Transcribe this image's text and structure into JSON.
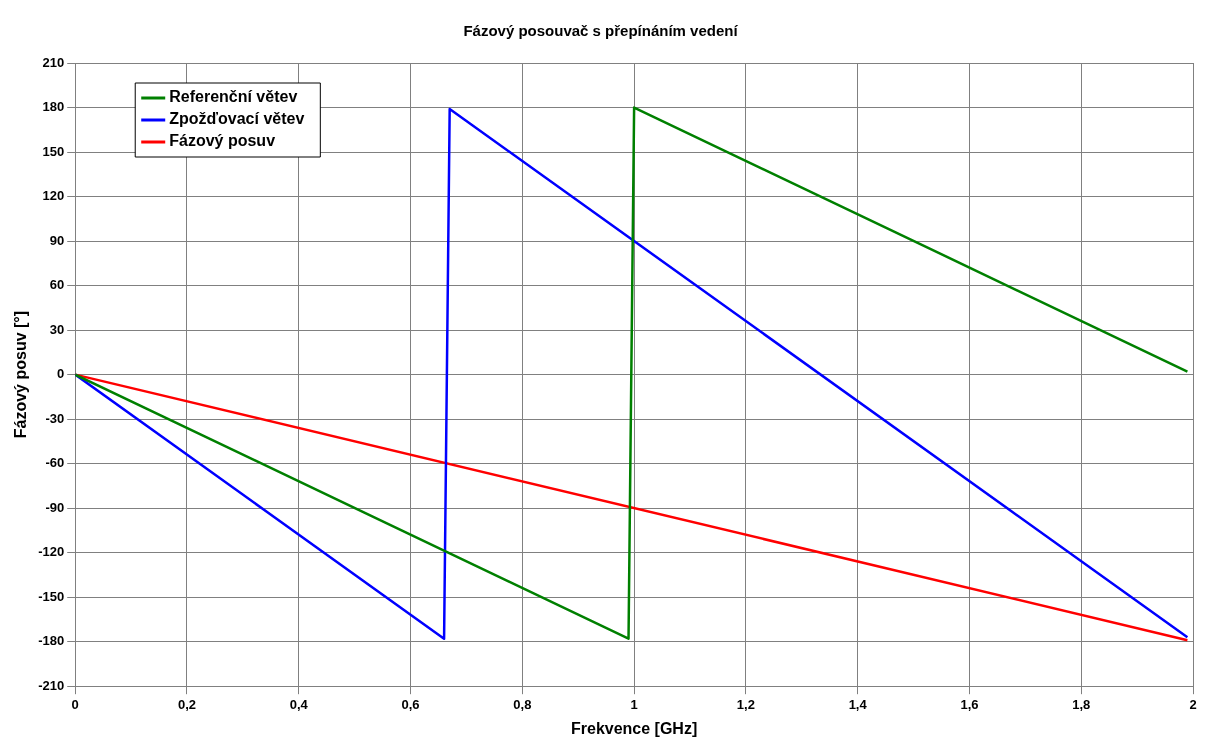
{
  "chart_data": {
    "type": "line",
    "title": "Fázový posouvač s přepínáním vedení",
    "xlabel": "Frekvence [GHz]",
    "ylabel": "Fázový posuv [°]",
    "xlim": [
      0,
      2
    ],
    "xticks": [
      0,
      {
        "value": 0.2,
        "label": "0,2"
      },
      {
        "value": 0.4,
        "label": "0,4"
      },
      {
        "value": 0.6,
        "label": "0,6"
      },
      {
        "value": 0.8,
        "label": "0,8"
      },
      1,
      {
        "value": 1.2,
        "label": "1,2"
      },
      {
        "value": 1.4,
        "label": "1,4"
      },
      {
        "value": 1.6,
        "label": "1,6"
      },
      {
        "value": 1.8,
        "label": "1,8"
      },
      2
    ],
    "ylim": [
      -210,
      210
    ],
    "yticks": [
      -210,
      -180,
      -150,
      -120,
      -90,
      -60,
      -30,
      0,
      30,
      60,
      90,
      120,
      150,
      180,
      210
    ],
    "grid": true,
    "legend": "top left",
    "marker": "none",
    "line_style": "solid",
    "series": [
      {
        "name": "Referenční větev",
        "color": "#008000",
        "x": [
          0,
          0.99,
          1.0,
          1.99
        ],
        "values": [
          0,
          -178,
          180,
          2
        ]
      },
      {
        "name": "Zpožďovací větev",
        "color": "#0000ff",
        "x": [
          0,
          0.66,
          0.67,
          1.99
        ],
        "values": [
          0,
          -178,
          179,
          -177
        ]
      },
      {
        "name": "Fázový posuv",
        "color": "#ff0000",
        "x": [
          0,
          1.99
        ],
        "values": [
          0,
          -179
        ]
      }
    ]
  }
}
